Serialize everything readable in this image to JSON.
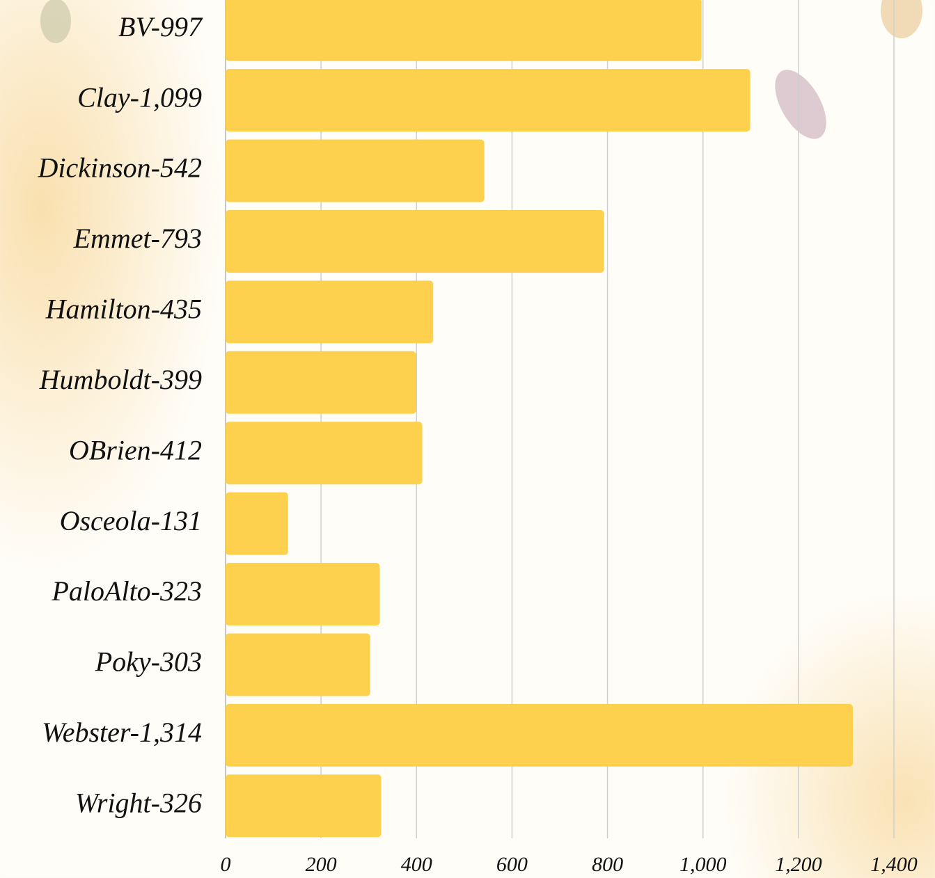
{
  "chart_data": {
    "type": "bar",
    "orientation": "horizontal",
    "categories": [
      "BV-997",
      "Clay-1,099",
      "Dickinson-542",
      "Emmet-793",
      "Hamilton-435",
      "Humboldt-399",
      "OBrien-412",
      "Osceola-131",
      "PaloAlto-323",
      "Poky-303",
      "Webster-1,314",
      "Wright-326"
    ],
    "values": [
      997,
      1099,
      542,
      793,
      435,
      399,
      412,
      131,
      323,
      303,
      1314,
      326
    ],
    "color": "#fdd14e",
    "xlim": [
      0,
      1400
    ],
    "xticks": [
      0,
      200,
      400,
      600,
      800,
      {
        "value": 1000,
        "label": "1,000"
      },
      {
        "value": 1200,
        "label": "1,200"
      },
      {
        "value": 1400,
        "label": "1,400"
      }
    ],
    "grid": true
  }
}
